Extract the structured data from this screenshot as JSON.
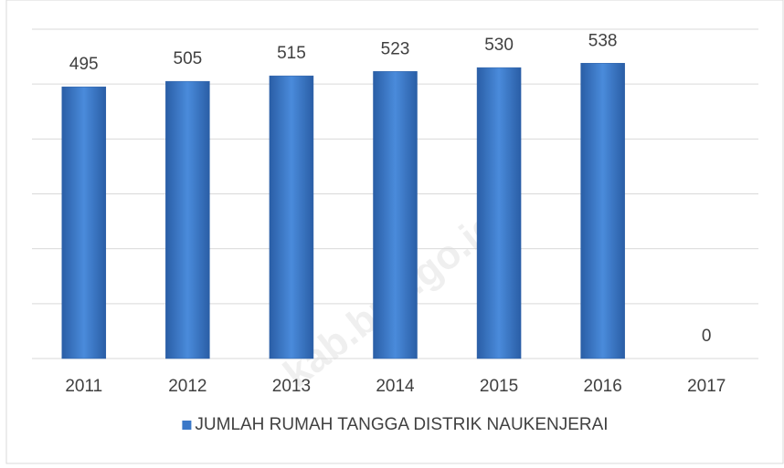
{
  "chart_data": {
    "type": "bar",
    "categories": [
      "2011",
      "2012",
      "2013",
      "2014",
      "2015",
      "2016",
      "2017"
    ],
    "series": [
      {
        "name": "JUMLAH RUMAH TANGGA DISTRIK NAUKENJERAI",
        "color": "#3a78c8",
        "values": [
          495,
          505,
          515,
          523,
          530,
          538,
          0
        ]
      }
    ],
    "ylim": [
      0,
      600
    ],
    "yticks": [
      0,
      100,
      200,
      300,
      400,
      500,
      600
    ],
    "grid": true,
    "legend": "bottom",
    "watermark": "kab.bps.go.id"
  }
}
